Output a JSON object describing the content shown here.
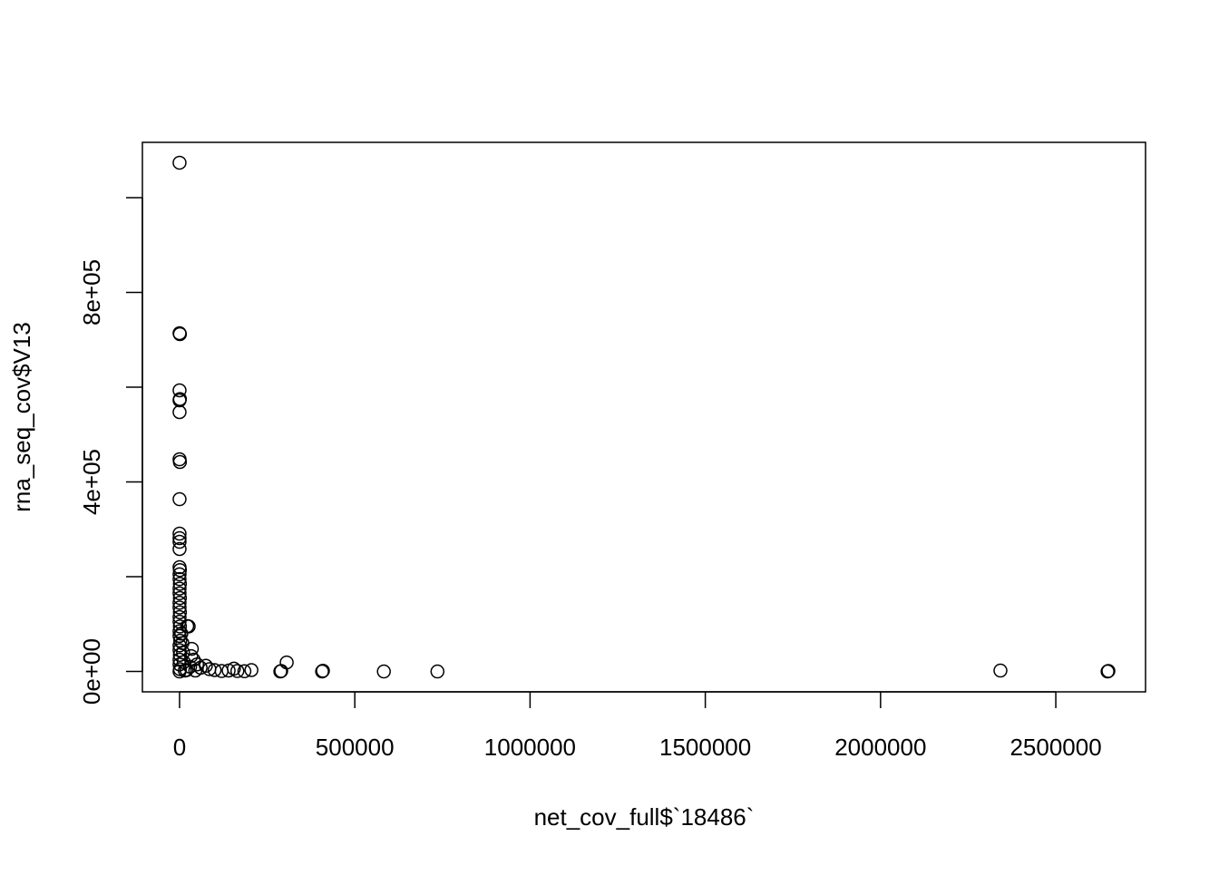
{
  "chart_data": {
    "type": "scatter",
    "x_label": "net_cov_full$`18486`",
    "y_label": "rna_seq_cov$V13",
    "color": "#000000",
    "xlim": [
      -106000,
      2756000
    ],
    "ylim": [
      -42950,
      1116650
    ],
    "xticks": [
      0,
      500000,
      1000000,
      1500000,
      2000000,
      2500000
    ],
    "yticks": [
      {
        "value": 0,
        "label": "0e+00"
      },
      {
        "value": 200000,
        "label": null
      },
      {
        "value": 400000,
        "label": "4e+05"
      },
      {
        "value": 600000,
        "label": null
      },
      {
        "value": 800000,
        "label": "8e+05"
      },
      {
        "value": 1000000,
        "label": null
      }
    ],
    "x": [
      0,
      0,
      1000,
      0,
      0,
      1000,
      0,
      0,
      1000,
      0,
      0,
      0,
      0,
      0,
      0,
      1000,
      0,
      0,
      1000,
      0,
      0,
      1000,
      0,
      0,
      1000,
      0,
      0,
      1000,
      0,
      0,
      2000,
      0,
      0,
      1000,
      0,
      0,
      1000,
      0,
      22000,
      26000,
      5000,
      8000,
      35000,
      33000,
      40000,
      12000,
      50000,
      60000,
      75000,
      85000,
      20000,
      45000,
      100000,
      120000,
      140000,
      155000,
      165000,
      185000,
      205000,
      287500,
      290000,
      305700,
      406700,
      409000,
      582900,
      735800,
      2342000,
      2647700,
      2650000,
      30000,
      10000,
      15000
    ],
    "y": [
      1073700,
      713900,
      712000,
      593300,
      572200,
      575000,
      547400,
      447800,
      442100,
      363600,
      290900,
      281300,
      273700,
      258400,
      220100,
      214000,
      205000,
      195000,
      185000,
      175000,
      165000,
      155000,
      145000,
      135000,
      125000,
      115000,
      105000,
      95000,
      85000,
      75000,
      65000,
      55000,
      45000,
      35000,
      25000,
      15000,
      5000,
      0,
      95700,
      95000,
      80000,
      60000,
      47800,
      32500,
      25000,
      20000,
      15000,
      8000,
      12000,
      5000,
      3000,
      2000,
      3000,
      1000,
      2000,
      6000,
      1000,
      500,
      3000,
      0,
      1000,
      19100,
      0,
      1500,
      0,
      0,
      1900,
      0,
      1000,
      10000,
      40000,
      2000
    ]
  }
}
